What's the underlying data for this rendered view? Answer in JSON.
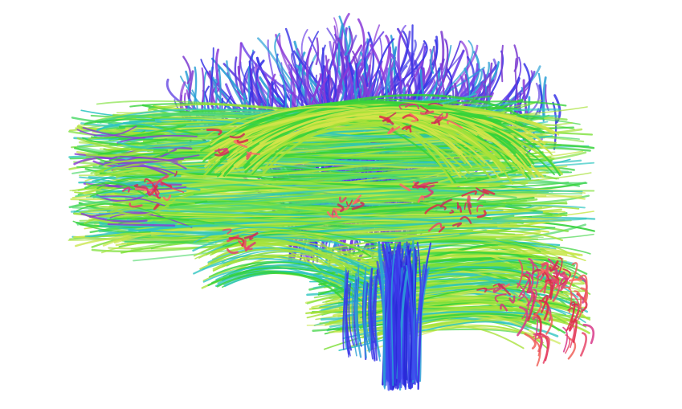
{
  "image": {
    "subject": "brain-white-matter-tractography",
    "background_color": "#ffffff",
    "palette": {
      "anterior_posterior": "#35d23a",
      "anterior_posterior_light": "#a8e23a",
      "superior_inferior": "#3a36e6",
      "superior_inferior_violet": "#8a3ad8",
      "left_right": "#e0284a",
      "mixed_cyan": "#2fc6c0",
      "mixed_teal": "#2a9fd6"
    }
  }
}
